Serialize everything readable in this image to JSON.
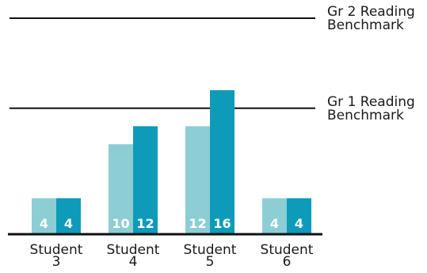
{
  "chart_data": {
    "type": "bar",
    "categories": [
      "Student\n3",
      "Student\n4",
      "Student\n5",
      "Student\n6"
    ],
    "series": [
      {
        "values": [
          4,
          10,
          12,
          4
        ],
        "color": "#8CCED4"
      },
      {
        "values": [
          4,
          12,
          16,
          4
        ],
        "color": "#0D9BB9"
      }
    ],
    "reference_lines": [
      {
        "label": "Gr 2 Reading\nBenchmark",
        "value": 24
      },
      {
        "label": "Gr 1 Reading\nBenchmark",
        "value": 14
      }
    ],
    "ylim": [
      0,
      24
    ],
    "data_labels": true,
    "grid": false,
    "colors": {
      "axis": "#111111",
      "reference_line": "#111111",
      "text": "#1a1a1a",
      "data_label": "#ffffff"
    }
  }
}
